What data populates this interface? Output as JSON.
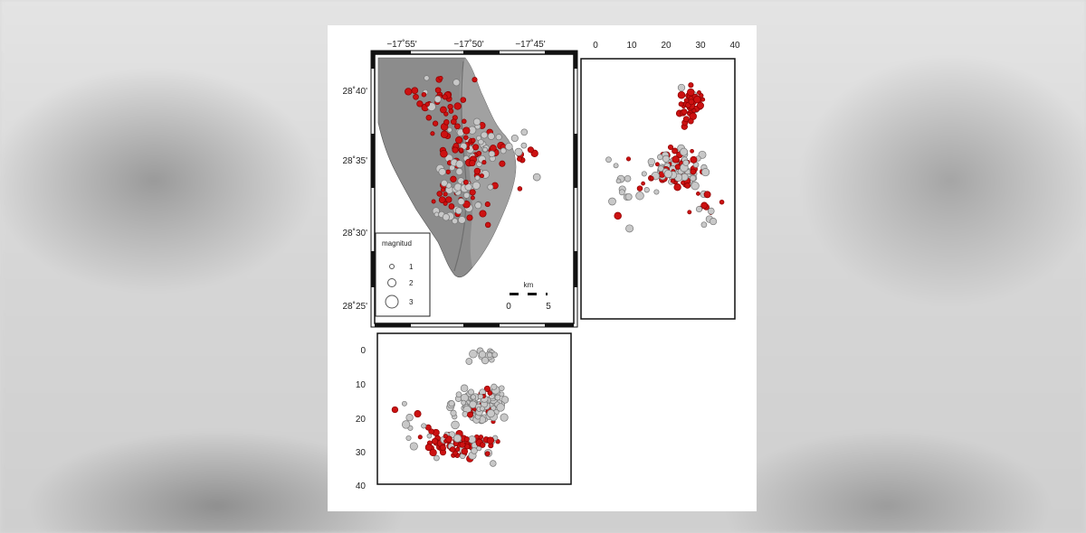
{
  "map": {
    "lon_ticks": [
      "−17˚55'",
      "−17˚50'",
      "−17˚45'"
    ],
    "lat_ticks": [
      "28˚40'",
      "28˚35'",
      "28˚30'",
      "28˚25'"
    ],
    "legend": {
      "title": "magnitud",
      "items": [
        "1",
        "2",
        "3"
      ]
    },
    "scale_bar": {
      "unit": "km",
      "labels": [
        "0",
        "5"
      ]
    }
  },
  "right_panel": {
    "x_ticks": [
      "0",
      "10",
      "20",
      "30",
      "40"
    ]
  },
  "bottom_panel": {
    "y_ticks": [
      "0",
      "10",
      "20",
      "30",
      "40"
    ]
  },
  "colors": {
    "red_events": "#cc1111",
    "grey_events": "#c8c8c8",
    "terrain": "#8a8a8a"
  }
}
